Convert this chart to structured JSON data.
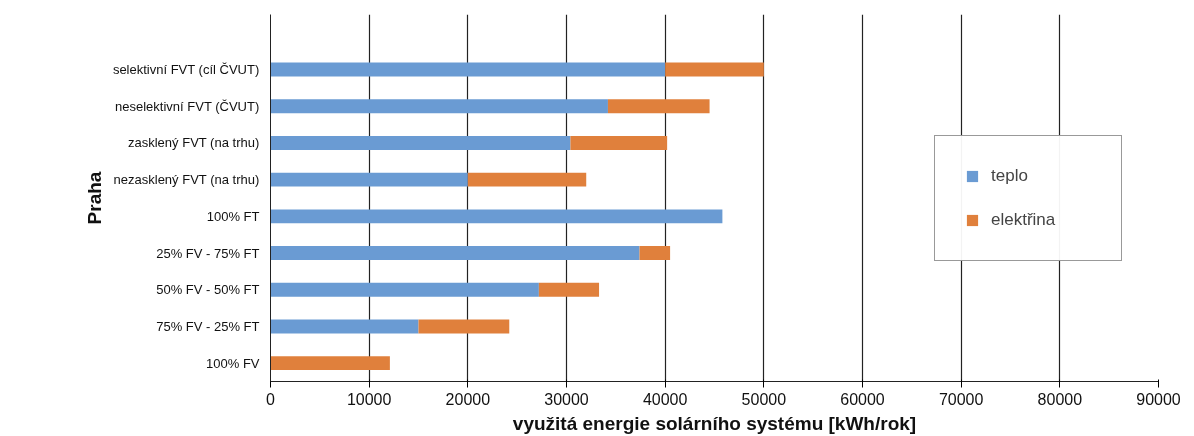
{
  "chart_data": {
    "type": "bar",
    "orientation": "horizontal",
    "stacked": true,
    "xlabel": "využitá energie solárního systému [kWh/rok]",
    "ylabel": "Praha",
    "categories": [
      null,
      "selektivní FVT (cíl ČVUT)",
      "neselektivní FVT (ČVUT)",
      "zasklený FVT (na trhu)",
      "nezasklený FVT (na trhu)",
      "100% FT",
      "25% FV - 75% FT",
      "50% FV - 50% FT",
      "75% FV - 25% FT",
      "100% FV"
    ],
    "series": [
      {
        "name": "teplo",
        "color": "#6a9bd3",
        "values": [
          null,
          40000,
          34200,
          30400,
          20000,
          45800,
          37400,
          27200,
          15000,
          0
        ]
      },
      {
        "name": "elektřina",
        "color": "#e0803c",
        "values": [
          null,
          10000,
          10300,
          9800,
          12000,
          0,
          3100,
          6100,
          9200,
          12100
        ]
      }
    ],
    "xlim": [
      0,
      90000
    ],
    "xticks": [
      0,
      10000,
      20000,
      30000,
      40000,
      50000,
      60000,
      70000,
      80000,
      90000
    ],
    "grid": "x",
    "legend": "right"
  }
}
